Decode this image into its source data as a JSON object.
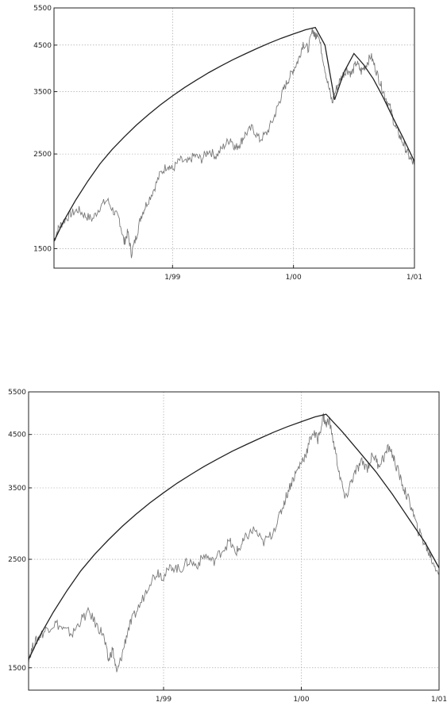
{
  "chart_data": [
    {
      "type": "line",
      "title": "",
      "xlabel": "",
      "ylabel": "",
      "y_scale": "log",
      "ylim": [
        1350,
        5500
      ],
      "xlim": [
        1998.02,
        2001.0
      ],
      "grid": true,
      "y_ticks": [
        {
          "value": 1500,
          "label": "1500"
        },
        {
          "value": 2500,
          "label": "2500"
        },
        {
          "value": 3500,
          "label": "3500"
        },
        {
          "value": 4500,
          "label": "4500"
        },
        {
          "value": 5500,
          "label": "5500"
        }
      ],
      "x_ticks": [
        {
          "value": 1999.0,
          "label": "1/99"
        },
        {
          "value": 2000.0,
          "label": "1/00"
        },
        {
          "value": 2001.0,
          "label": "1/01"
        }
      ],
      "series": [
        {
          "style": "gray-noisy",
          "x": [
            1998.02,
            1998.06,
            1998.1,
            1998.16,
            1998.22,
            1998.28,
            1998.34,
            1998.4,
            1998.46,
            1998.52,
            1998.56,
            1998.6,
            1998.63,
            1998.66,
            1998.7,
            1998.74,
            1998.78,
            1998.84,
            1998.9,
            1998.96,
            1999.0,
            1999.06,
            1999.12,
            1999.18,
            1999.24,
            1999.3,
            1999.36,
            1999.42,
            1999.48,
            1999.52,
            1999.56,
            1999.6,
            1999.66,
            1999.72,
            1999.78,
            1999.84,
            1999.88,
            1999.92,
            1999.96,
            2000.0,
            2000.04,
            2000.08,
            2000.12,
            2000.16,
            2000.18,
            2000.2,
            2000.24,
            2000.28,
            2000.32,
            2000.36,
            2000.4,
            2000.44,
            2000.48,
            2000.52,
            2000.56,
            2000.6,
            2000.64,
            2000.68,
            2000.72,
            2000.76,
            2000.8,
            2000.84,
            2000.88,
            2000.92,
            2000.96,
            2001.0
          ],
          "values": [
            1570,
            1680,
            1740,
            1810,
            1850,
            1790,
            1760,
            1880,
            1950,
            1820,
            1760,
            1550,
            1640,
            1460,
            1600,
            1790,
            1900,
            2050,
            2250,
            2360,
            2300,
            2420,
            2380,
            2480,
            2430,
            2550,
            2470,
            2600,
            2720,
            2580,
            2650,
            2780,
            2880,
            2700,
            2800,
            3050,
            3300,
            3550,
            3750,
            3950,
            4150,
            4550,
            4400,
            4900,
            4700,
            4850,
            4250,
            3700,
            3300,
            3600,
            3800,
            3950,
            3850,
            4100,
            3900,
            4050,
            4250,
            3950,
            3650,
            3400,
            3200,
            2900,
            2750,
            2600,
            2450,
            2350
          ]
        },
        {
          "style": "black-fit",
          "x": [
            1998.02,
            1998.1,
            1998.2,
            1998.3,
            1998.4,
            1998.5,
            1998.6,
            1998.7,
            1998.8,
            1998.9,
            1999.0,
            1999.1,
            1999.2,
            1999.3,
            1999.4,
            1999.5,
            1999.6,
            1999.7,
            1999.8,
            1999.9,
            2000.0,
            2000.1,
            2000.18,
            2000.26,
            2000.34,
            2000.42,
            2000.5,
            2000.58,
            2000.66,
            2000.74,
            2000.82,
            2000.9,
            2001.0
          ],
          "values": [
            1560,
            1740,
            1950,
            2160,
            2370,
            2560,
            2740,
            2920,
            3090,
            3260,
            3420,
            3580,
            3730,
            3880,
            4020,
            4160,
            4290,
            4420,
            4550,
            4670,
            4780,
            4890,
            4950,
            4500,
            3350,
            3900,
            4300,
            4050,
            3750,
            3400,
            3050,
            2750,
            2400
          ]
        }
      ]
    },
    {
      "type": "line",
      "title": "",
      "xlabel": "",
      "ylabel": "",
      "y_scale": "log",
      "ylim": [
        1350,
        5500
      ],
      "xlim": [
        1998.02,
        2001.0
      ],
      "grid": true,
      "y_ticks": [
        {
          "value": 1500,
          "label": "1500"
        },
        {
          "value": 2500,
          "label": "2500"
        },
        {
          "value": 3500,
          "label": "3500"
        },
        {
          "value": 4500,
          "label": "4500"
        },
        {
          "value": 5500,
          "label": "5500"
        }
      ],
      "x_ticks": [
        {
          "value": 1999.0,
          "label": "1/99"
        },
        {
          "value": 2000.0,
          "label": "1/00"
        },
        {
          "value": 2001.0,
          "label": "1/01"
        }
      ],
      "series": [
        {
          "style": "gray-noisy",
          "x": [
            1998.02,
            1998.06,
            1998.1,
            1998.16,
            1998.22,
            1998.28,
            1998.34,
            1998.4,
            1998.46,
            1998.52,
            1998.56,
            1998.6,
            1998.63,
            1998.66,
            1998.7,
            1998.74,
            1998.78,
            1998.84,
            1998.9,
            1998.96,
            1999.0,
            1999.06,
            1999.12,
            1999.18,
            1999.24,
            1999.3,
            1999.36,
            1999.42,
            1999.48,
            1999.52,
            1999.56,
            1999.6,
            1999.66,
            1999.72,
            1999.78,
            1999.84,
            1999.88,
            1999.92,
            1999.96,
            2000.0,
            2000.04,
            2000.08,
            2000.12,
            2000.16,
            2000.18,
            2000.2,
            2000.24,
            2000.28,
            2000.32,
            2000.36,
            2000.4,
            2000.44,
            2000.48,
            2000.52,
            2000.56,
            2000.6,
            2000.64,
            2000.68,
            2000.72,
            2000.76,
            2000.8,
            2000.84,
            2000.88,
            2000.92,
            2000.96,
            2001.0
          ],
          "values": [
            1570,
            1680,
            1740,
            1810,
            1850,
            1790,
            1760,
            1880,
            1950,
            1820,
            1760,
            1550,
            1640,
            1460,
            1600,
            1790,
            1900,
            2050,
            2250,
            2360,
            2300,
            2420,
            2380,
            2480,
            2430,
            2550,
            2470,
            2600,
            2720,
            2580,
            2650,
            2780,
            2880,
            2700,
            2800,
            3050,
            3300,
            3550,
            3750,
            3950,
            4150,
            4550,
            4400,
            4900,
            4700,
            4850,
            4250,
            3700,
            3300,
            3600,
            3800,
            3950,
            3850,
            4100,
            3900,
            4050,
            4250,
            3950,
            3650,
            3400,
            3200,
            2900,
            2750,
            2600,
            2450,
            2350
          ]
        },
        {
          "style": "black-fit",
          "x": [
            1998.02,
            1998.1,
            1998.2,
            1998.3,
            1998.4,
            1998.5,
            1998.6,
            1998.7,
            1998.8,
            1998.9,
            1999.0,
            1999.1,
            1999.2,
            1999.3,
            1999.4,
            1999.5,
            1999.6,
            1999.7,
            1999.8,
            1999.9,
            2000.0,
            2000.1,
            2000.18,
            2000.3,
            2000.42,
            2000.54,
            2000.66,
            2000.78,
            2000.9,
            2001.0
          ],
          "values": [
            1560,
            1740,
            1950,
            2160,
            2370,
            2560,
            2740,
            2920,
            3090,
            3260,
            3420,
            3580,
            3730,
            3880,
            4020,
            4160,
            4290,
            4420,
            4550,
            4670,
            4780,
            4890,
            4950,
            4550,
            4150,
            3780,
            3400,
            3030,
            2700,
            2400
          ]
        }
      ]
    }
  ]
}
